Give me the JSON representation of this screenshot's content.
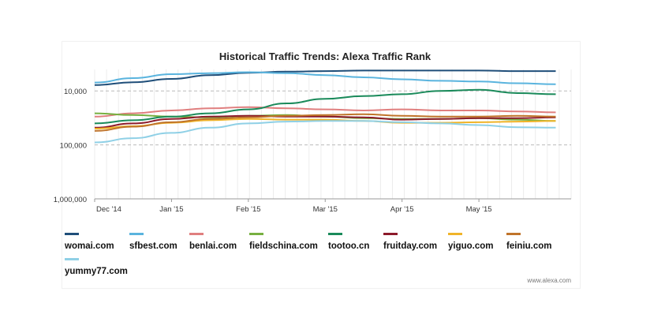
{
  "chart_data": {
    "type": "line",
    "title": "Historical Traffic Trends: Alexa Traffic Rank",
    "y_scale": "log-reversed",
    "ylim": [
      1000000,
      4000
    ],
    "y_ticks": [
      {
        "value": 10000,
        "label": "10,000"
      },
      {
        "value": 100000,
        "label": "100,000"
      },
      {
        "value": 1000000,
        "label": "1,000,000"
      }
    ],
    "x_ticks": [
      "Dec '14",
      "Jan '15",
      "Feb '15",
      "Mar '15",
      "Apr '15",
      "May '15"
    ],
    "x_months_span": [
      0,
      6.2
    ],
    "grid": true,
    "legend_placement": "bottom",
    "credit": "www.alexa.com",
    "series": [
      {
        "name": "womai.com",
        "color": "#1f4e79",
        "points": [
          [
            0,
            7800
          ],
          [
            0.5,
            6900
          ],
          [
            1,
            6000
          ],
          [
            1.5,
            5100
          ],
          [
            2,
            4600
          ],
          [
            2.5,
            4400
          ],
          [
            3,
            4300
          ],
          [
            3.5,
            4200
          ],
          [
            4,
            4200
          ],
          [
            4.5,
            4200
          ],
          [
            5,
            4200
          ],
          [
            5.5,
            4300
          ],
          [
            6,
            4300
          ]
        ]
      },
      {
        "name": "sfbest.com",
        "color": "#5ab4de",
        "points": [
          [
            0,
            7000
          ],
          [
            0.5,
            5800
          ],
          [
            1,
            4900
          ],
          [
            1.5,
            4700
          ],
          [
            2,
            4500
          ],
          [
            2.5,
            4700
          ],
          [
            3,
            5100
          ],
          [
            3.5,
            5600
          ],
          [
            4,
            6100
          ],
          [
            4.5,
            6500
          ],
          [
            5,
            6700
          ],
          [
            5.5,
            7200
          ],
          [
            6,
            7500
          ]
        ]
      },
      {
        "name": "benlai.com",
        "color": "#e07f7f",
        "points": [
          [
            0,
            30000
          ],
          [
            0.5,
            26000
          ],
          [
            1,
            23000
          ],
          [
            1.5,
            21000
          ],
          [
            2,
            20000
          ],
          [
            2.5,
            21000
          ],
          [
            3,
            22000
          ],
          [
            3.5,
            23000
          ],
          [
            4,
            22000
          ],
          [
            4.5,
            23000
          ],
          [
            5,
            23000
          ],
          [
            5.5,
            24000
          ],
          [
            6,
            25000
          ]
        ]
      },
      {
        "name": "fieldschina.com",
        "color": "#77b041",
        "points": [
          [
            0,
            26000
          ],
          [
            0.5,
            28000
          ],
          [
            1,
            30000
          ],
          [
            1.5,
            31000
          ],
          [
            2,
            29000
          ],
          [
            2.5,
            28000
          ],
          [
            3,
            30000
          ],
          [
            3.5,
            32000
          ],
          [
            4,
            33000
          ],
          [
            4.5,
            33000
          ],
          [
            5,
            32000
          ],
          [
            5.5,
            34000
          ],
          [
            6,
            36000
          ]
        ]
      },
      {
        "name": "tootoo.cn",
        "color": "#1a8a5a",
        "points": [
          [
            0,
            40000
          ],
          [
            0.5,
            35000
          ],
          [
            1,
            30000
          ],
          [
            1.5,
            26000
          ],
          [
            2,
            22000
          ],
          [
            2.5,
            17000
          ],
          [
            3,
            14000
          ],
          [
            3.5,
            12500
          ],
          [
            4,
            11500
          ],
          [
            4.5,
            10000
          ],
          [
            5,
            9500
          ],
          [
            5.5,
            11000
          ],
          [
            6,
            11500
          ]
        ]
      },
      {
        "name": "fruitday.com",
        "color": "#8c1a2a",
        "points": [
          [
            0,
            48000
          ],
          [
            0.5,
            40000
          ],
          [
            1,
            33000
          ],
          [
            1.5,
            30000
          ],
          [
            2,
            29000
          ],
          [
            2.5,
            30000
          ],
          [
            3,
            30000
          ],
          [
            3.5,
            31000
          ],
          [
            4,
            34000
          ],
          [
            4.5,
            33000
          ],
          [
            5,
            32000
          ],
          [
            5.5,
            32000
          ],
          [
            6,
            31000
          ]
        ]
      },
      {
        "name": "yiguo.com",
        "color": "#f0b429",
        "points": [
          [
            0,
            50000
          ],
          [
            0.5,
            45000
          ],
          [
            1,
            39000
          ],
          [
            1.5,
            35000
          ],
          [
            2,
            33000
          ],
          [
            2.5,
            34000
          ],
          [
            3,
            34000
          ],
          [
            3.5,
            36000
          ],
          [
            4,
            39000
          ],
          [
            4.5,
            39000
          ],
          [
            5,
            38000
          ],
          [
            5.5,
            37000
          ],
          [
            6,
            36000
          ]
        ]
      },
      {
        "name": "feiniu.com",
        "color": "#c0742a",
        "points": [
          [
            0,
            55000
          ],
          [
            0.5,
            46000
          ],
          [
            1,
            38000
          ],
          [
            1.5,
            33000
          ],
          [
            2,
            31000
          ],
          [
            2.5,
            29000
          ],
          [
            3,
            28000
          ],
          [
            3.5,
            27000
          ],
          [
            4,
            29000
          ],
          [
            4.5,
            30000
          ],
          [
            5,
            30000
          ],
          [
            5.5,
            29000
          ],
          [
            6,
            30000
          ]
        ]
      },
      {
        "name": "yummy77.com",
        "color": "#8fd0e6",
        "points": [
          [
            0,
            90000
          ],
          [
            0.5,
            75000
          ],
          [
            1,
            60000
          ],
          [
            1.5,
            48000
          ],
          [
            2,
            40000
          ],
          [
            2.5,
            37000
          ],
          [
            3,
            36000
          ],
          [
            3.5,
            36000
          ],
          [
            4,
            38000
          ],
          [
            4.5,
            40000
          ],
          [
            5,
            43000
          ],
          [
            5.5,
            47000
          ],
          [
            6,
            48000
          ]
        ]
      }
    ]
  }
}
